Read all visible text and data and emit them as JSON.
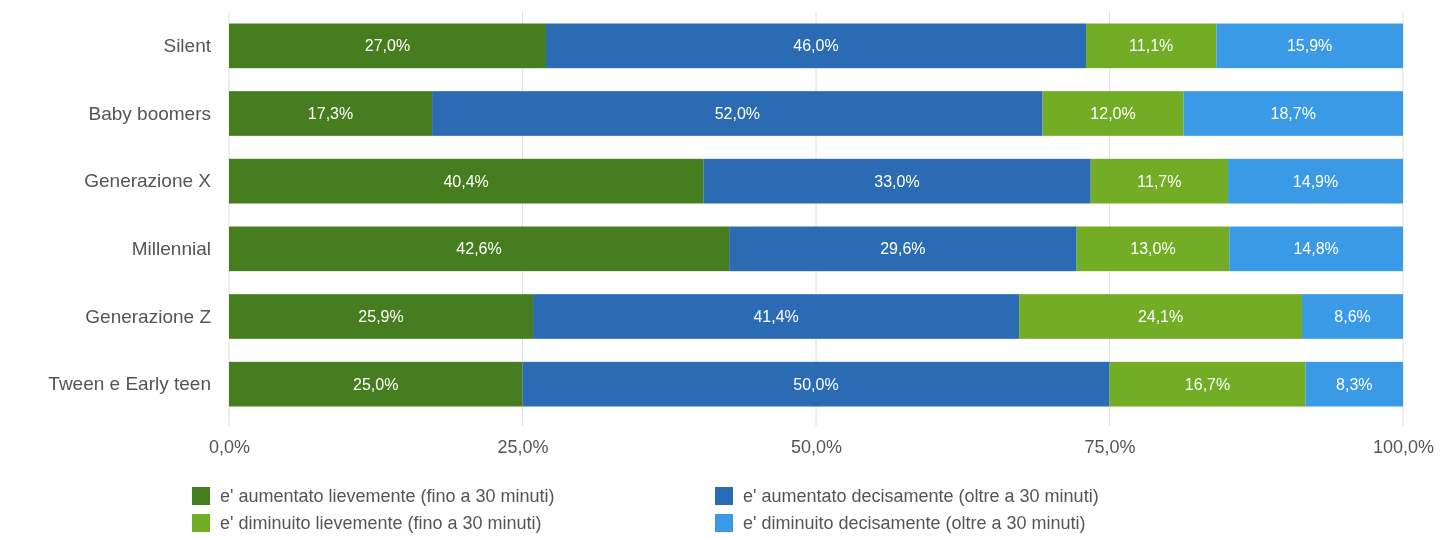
{
  "chart_data": {
    "type": "bar",
    "orientation": "horizontal",
    "stacked": true,
    "grid": "x",
    "legend": "bottom",
    "categories": [
      "Silent",
      "Baby boomers",
      "Generazione X",
      "Millennial",
      "Generazione Z",
      "Tween e Early teen"
    ],
    "xlim": [
      0,
      100
    ],
    "xticks": [
      {
        "value": 0,
        "label": "0,0%"
      },
      {
        "value": 25,
        "label": "25,0%"
      },
      {
        "value": 50,
        "label": "50,0%"
      },
      {
        "value": 75,
        "label": "75,0%"
      },
      {
        "value": 100,
        "label": "100,0%"
      }
    ],
    "series": [
      {
        "name": "e' aumentato lievemente (fino a 30 minuti)",
        "color": "#467d1e",
        "values": [
          27.0,
          17.3,
          40.4,
          42.6,
          25.9,
          25.0
        ],
        "value_labels": [
          "27,0%",
          "17,3%",
          "40,4%",
          "42,6%",
          "25,9%",
          "25,0%"
        ]
      },
      {
        "name": "e' aumentato decisamente (oltre a 30 minuti)",
        "color": "#2a6bb3",
        "values": [
          46.0,
          52.0,
          33.0,
          29.6,
          41.4,
          50.0
        ],
        "value_labels": [
          "46,0%",
          "52,0%",
          "33,0%",
          "29,6%",
          "41,4%",
          "50,0%"
        ]
      },
      {
        "name": "e' diminuito lievemente (fino a 30 minuti)",
        "color": "#72ad25",
        "values": [
          11.1,
          12.0,
          11.7,
          13.0,
          24.1,
          16.7
        ],
        "value_labels": [
          "11,1%",
          "12,0%",
          "11,7%",
          "13,0%",
          "24,1%",
          "16,7%"
        ]
      },
      {
        "name": "e' diminuito decisamente (oltre a 30 minuti)",
        "color": "#3a9ae6",
        "values": [
          15.9,
          18.7,
          14.9,
          14.8,
          8.6,
          8.3
        ],
        "value_labels": [
          "15,9%",
          "18,7%",
          "14,9%",
          "14,8%",
          "8,6%",
          "8,3%"
        ]
      }
    ]
  }
}
